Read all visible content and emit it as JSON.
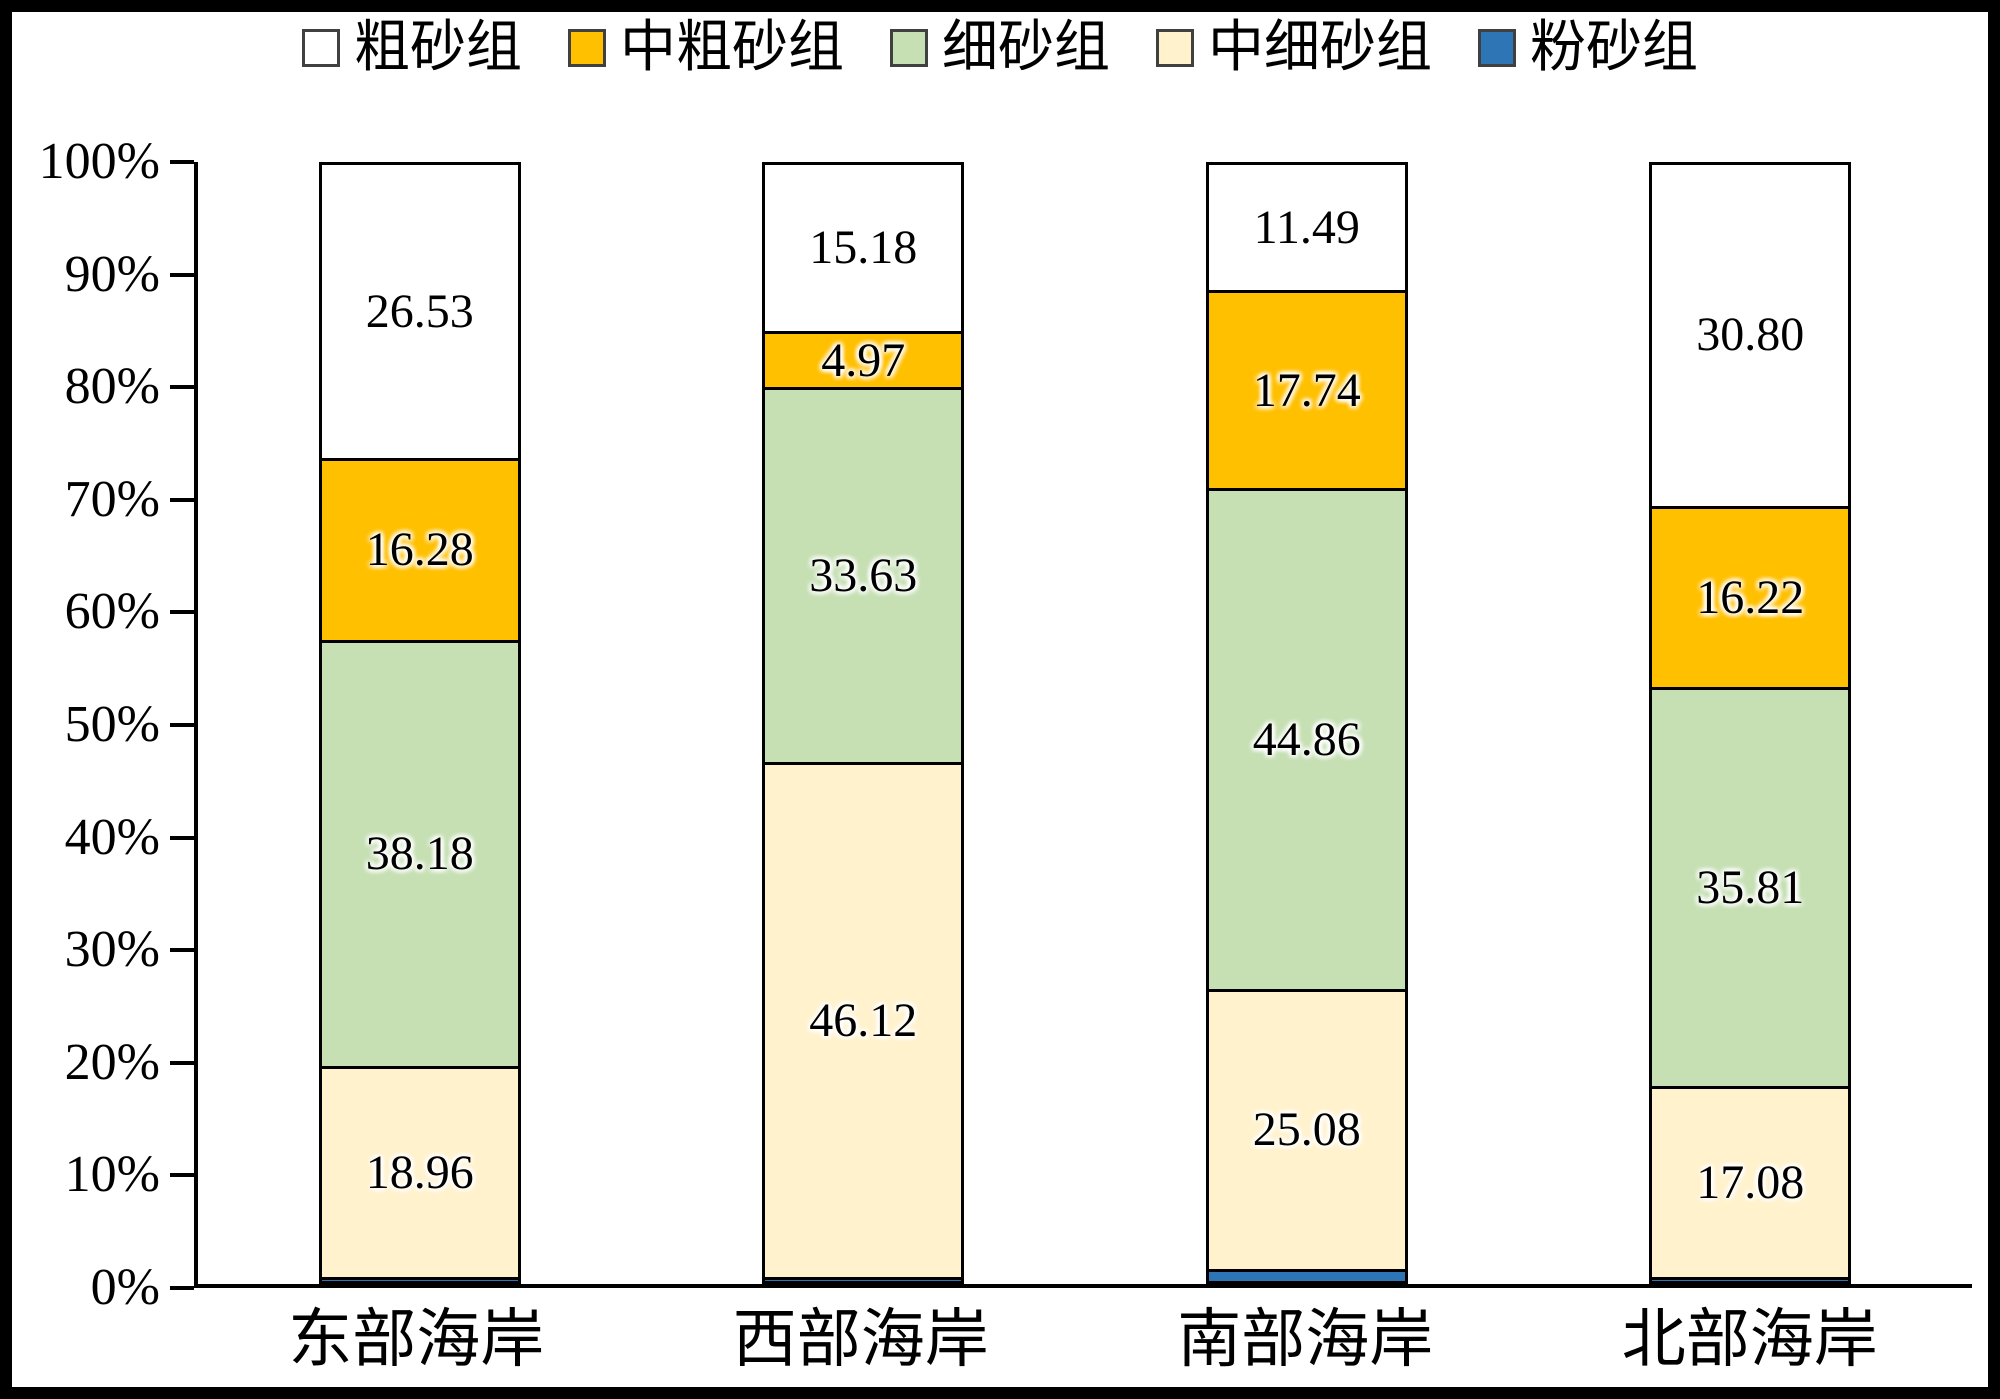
{
  "chart_data": {
    "type": "bar",
    "subtype": "stacked-100-percent",
    "stack_order": "bottom-to-top",
    "categories": [
      "东部海岸",
      "西部海岸",
      "南部海岸",
      "北部海岸"
    ],
    "series": [
      {
        "name": "粉砂组",
        "color": "#2E75B6",
        "values": [
          0.05,
          0.1,
          0.83,
          0.09
        ],
        "labels": [
          null,
          null,
          null,
          null
        ]
      },
      {
        "name": "中细砂组",
        "color": "#FFF2CC",
        "values": [
          18.96,
          46.12,
          25.08,
          17.08
        ],
        "labels": [
          "18.96",
          "46.12",
          "25.08",
          "17.08"
        ]
      },
      {
        "name": "细砂组",
        "color": "#C6E0B4",
        "values": [
          38.18,
          33.63,
          44.86,
          35.81
        ],
        "labels": [
          "38.18",
          "33.63",
          "44.86",
          "35.81"
        ]
      },
      {
        "name": "中粗砂组",
        "color": "#FFC000",
        "values": [
          16.28,
          4.97,
          17.74,
          16.22
        ],
        "labels": [
          "16.28",
          "4.97",
          "17.74",
          "16.22"
        ]
      },
      {
        "name": "粗砂组",
        "color": "#FFFFFF",
        "values": [
          26.53,
          15.18,
          11.49,
          30.8
        ],
        "labels": [
          "26.53",
          "15.18",
          "11.49",
          "30.80"
        ]
      }
    ],
    "legend": [
      {
        "label": "粗砂组",
        "color": "#FFFFFF"
      },
      {
        "label": "中粗砂组",
        "color": "#FFC000"
      },
      {
        "label": "细砂组",
        "color": "#C6E0B4"
      },
      {
        "label": "中细砂组",
        "color": "#FFF2CC"
      },
      {
        "label": "粉砂组",
        "color": "#2E75B6"
      }
    ],
    "legend_position": "top",
    "y_axis": {
      "min": 0,
      "max": 100,
      "tick_step": 10,
      "tick_labels": [
        "0%",
        "10%",
        "20%",
        "30%",
        "40%",
        "50%",
        "60%",
        "70%",
        "80%",
        "90%",
        "100%"
      ]
    },
    "grid": "off",
    "title": "",
    "xlabel": "",
    "ylabel": ""
  }
}
